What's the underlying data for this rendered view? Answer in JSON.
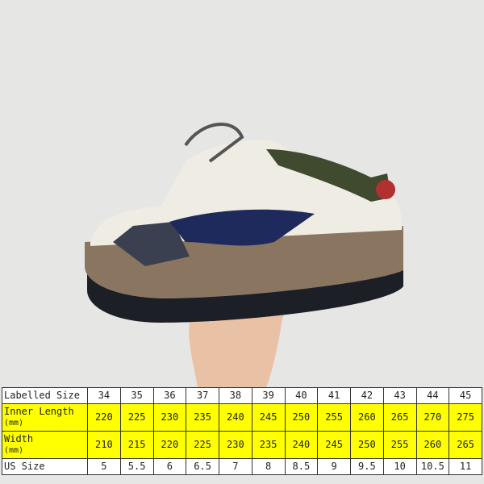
{
  "colors": {
    "highlight": "#ffff00",
    "wall": "#e4e4e2",
    "sole": "#8a7560",
    "upper_accent": "#1f2a5c"
  },
  "size_chart": {
    "rows": [
      {
        "label": "Labelled Size",
        "unit": "",
        "highlight": false,
        "values": [
          "34",
          "35",
          "36",
          "37",
          "38",
          "39",
          "40",
          "41",
          "42",
          "43",
          "44",
          "45"
        ]
      },
      {
        "label": "Inner Length",
        "unit": "(mm)",
        "highlight": true,
        "values": [
          "220",
          "225",
          "230",
          "235",
          "240",
          "245",
          "250",
          "255",
          "260",
          "265",
          "270",
          "275"
        ]
      },
      {
        "label": "Width",
        "unit": "(mm)",
        "highlight": true,
        "values": [
          "210",
          "215",
          "220",
          "225",
          "230",
          "235",
          "240",
          "245",
          "250",
          "255",
          "260",
          "265"
        ]
      },
      {
        "label": "US Size",
        "unit": "",
        "highlight": false,
        "values": [
          "5",
          "5.5",
          "6",
          "6.5",
          "7",
          "8",
          "8.5",
          "9",
          "9.5",
          "10",
          "10.5",
          "11"
        ]
      }
    ]
  }
}
